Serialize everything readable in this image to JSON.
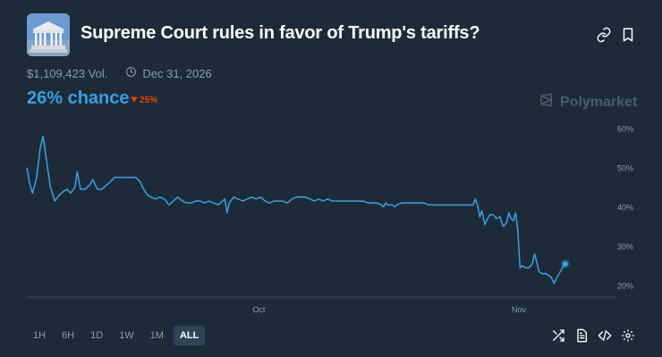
{
  "market": {
    "title": "Supreme Court rules in favor of Trump's tariffs?",
    "volume": "$1,109,423 Vol.",
    "end_date": "Dec 31, 2026",
    "chance": "26% chance",
    "change": "25%",
    "change_direction": "down",
    "brand": "Polymarket"
  },
  "icons": {
    "link": "link-icon",
    "bookmark": "bookmark-icon",
    "clock": "clock-icon",
    "brand_logo": "polymarket-logo-icon",
    "shuffle": "shuffle-icon",
    "document": "document-icon",
    "embed": "code-icon",
    "settings": "gear-icon"
  },
  "range_buttons": [
    "1H",
    "6H",
    "1W",
    "1M",
    "ALL"
  ],
  "range_display": [
    "1H",
    "6H",
    "1D",
    "1W",
    "1M",
    "ALL"
  ],
  "active_range": "ALL",
  "colors": {
    "background": "#1d2b39",
    "line": "#3b9fe2",
    "down": "#e64800",
    "muted": "#899cb2",
    "grid": "#3a4b5c"
  },
  "chart_data": {
    "type": "line",
    "title": "",
    "xlabel": "",
    "ylabel": "",
    "x_ticks": [
      "Oct",
      "Nov"
    ],
    "y_ticks": [
      "20%",
      "30%",
      "40%",
      "50%",
      "60%"
    ],
    "ylim": [
      17,
      62
    ],
    "xlim": [
      0,
      100
    ],
    "grid": "none",
    "series": [
      {
        "values": [
          [
            0,
            50
          ],
          [
            0.5,
            46
          ],
          [
            1,
            43.5
          ],
          [
            1.7,
            47
          ],
          [
            2.4,
            55
          ],
          [
            2.9,
            58
          ],
          [
            3.5,
            52
          ],
          [
            4.2,
            45
          ],
          [
            5,
            41.5
          ],
          [
            5.8,
            43
          ],
          [
            6.6,
            44
          ],
          [
            7.2,
            44.5
          ],
          [
            7.8,
            43.5
          ],
          [
            8.6,
            45
          ],
          [
            9,
            49
          ],
          [
            9.6,
            44.5
          ],
          [
            10.4,
            44.5
          ],
          [
            11.2,
            45.5
          ],
          [
            11.8,
            47
          ],
          [
            12.6,
            44.5
          ],
          [
            13.4,
            44.5
          ],
          [
            14.2,
            45.5
          ],
          [
            15,
            46.5
          ],
          [
            15.7,
            47.5
          ],
          [
            17,
            47.5
          ],
          [
            18.5,
            47.5
          ],
          [
            19.5,
            47.5
          ],
          [
            20.2,
            46.5
          ],
          [
            20.9,
            44.5
          ],
          [
            21.6,
            43
          ],
          [
            22.2,
            42.5
          ],
          [
            23,
            42
          ],
          [
            23.8,
            42.5
          ],
          [
            24.6,
            42
          ],
          [
            25.4,
            40.5
          ],
          [
            26.2,
            41.5
          ],
          [
            27,
            42.5
          ],
          [
            27.8,
            41.5
          ],
          [
            28.6,
            41
          ],
          [
            29.4,
            41
          ],
          [
            30.2,
            41.5
          ],
          [
            31,
            41.5
          ],
          [
            31.8,
            41
          ],
          [
            32.6,
            41.5
          ],
          [
            33.4,
            41
          ],
          [
            34.2,
            40.5
          ],
          [
            35,
            41.5
          ],
          [
            35.4,
            42
          ],
          [
            35.8,
            38.5
          ],
          [
            36.2,
            41
          ],
          [
            37,
            42.5
          ],
          [
            37.8,
            42
          ],
          [
            38.6,
            41.5
          ],
          [
            39.4,
            42
          ],
          [
            40.2,
            42.5
          ],
          [
            41,
            42
          ],
          [
            41.8,
            42.5
          ],
          [
            42.6,
            41.5
          ],
          [
            43.4,
            41
          ],
          [
            44.2,
            41.5
          ],
          [
            45,
            41.5
          ],
          [
            45.8,
            41.5
          ],
          [
            46.6,
            41
          ],
          [
            47.4,
            42
          ],
          [
            48.2,
            42.5
          ],
          [
            49,
            42.5
          ],
          [
            49.8,
            42.5
          ],
          [
            50.6,
            42
          ],
          [
            51.4,
            41.5
          ],
          [
            52.2,
            42
          ],
          [
            53,
            41.5
          ],
          [
            53.8,
            42
          ],
          [
            54.6,
            41.5
          ],
          [
            55.4,
            41.5
          ],
          [
            56.2,
            41.5
          ],
          [
            57,
            41.5
          ],
          [
            57.8,
            41.5
          ],
          [
            58.6,
            41.5
          ],
          [
            59.4,
            41.5
          ],
          [
            60.2,
            41.5
          ],
          [
            61,
            41
          ],
          [
            61.8,
            41
          ],
          [
            62.6,
            41
          ],
          [
            63.4,
            40.5
          ],
          [
            63.8,
            40
          ],
          [
            64.2,
            41
          ],
          [
            64.6,
            40.5
          ],
          [
            65.4,
            40.5
          ],
          [
            65.8,
            40
          ],
          [
            66.2,
            40.5
          ],
          [
            67,
            41
          ],
          [
            67.8,
            41
          ],
          [
            68.6,
            41
          ],
          [
            69.4,
            41
          ],
          [
            70.2,
            41
          ],
          [
            71,
            41
          ],
          [
            71.8,
            40.5
          ],
          [
            72.6,
            40.5
          ],
          [
            73.4,
            40.5
          ],
          [
            74.2,
            40.5
          ],
          [
            75,
            40.5
          ],
          [
            75.8,
            40.5
          ],
          [
            76.6,
            40.5
          ],
          [
            77.4,
            40.5
          ],
          [
            78.2,
            40.5
          ],
          [
            79,
            40.5
          ],
          [
            79.8,
            40.5
          ],
          [
            80.2,
            42
          ],
          [
            80.6,
            40.5
          ],
          [
            81,
            37.5
          ],
          [
            81.4,
            39
          ],
          [
            81.9,
            35.5
          ],
          [
            82.4,
            37
          ],
          [
            82.8,
            38
          ],
          [
            83.4,
            38
          ],
          [
            84,
            37
          ],
          [
            84.6,
            37.5
          ],
          [
            85.2,
            35
          ],
          [
            85.8,
            36
          ],
          [
            86.2,
            38.5
          ],
          [
            86.6,
            37
          ],
          [
            87,
            36.5
          ],
          [
            87.4,
            38.5
          ],
          [
            87.8,
            34
          ],
          [
            88.2,
            24.5
          ],
          [
            88.6,
            25
          ],
          [
            89.2,
            24.5
          ],
          [
            89.8,
            24.5
          ],
          [
            90.4,
            25.5
          ],
          [
            90.8,
            28
          ],
          [
            91.2,
            26
          ],
          [
            91.6,
            23.5
          ],
          [
            92.2,
            23
          ],
          [
            92.8,
            23
          ],
          [
            93.4,
            22.5
          ],
          [
            93.8,
            22
          ],
          [
            94.3,
            20.5
          ],
          [
            94.8,
            22
          ],
          [
            95.4,
            23.5
          ],
          [
            96,
            25
          ],
          [
            96.3,
            25.5
          ]
        ]
      }
    ]
  }
}
